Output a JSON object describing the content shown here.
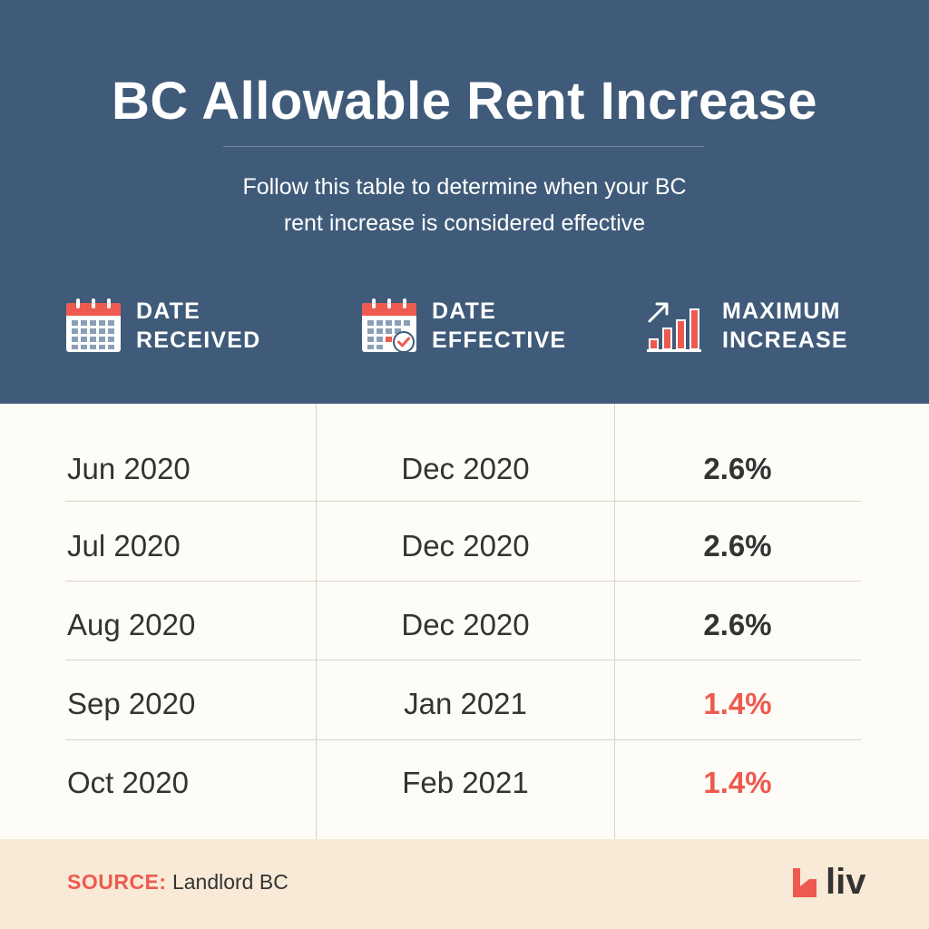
{
  "header": {
    "title": "BC Allowable Rent Increase",
    "subtitle_line1": "Follow this table to determine when your BC",
    "subtitle_line2": "rent increase is considered effective"
  },
  "columns": [
    {
      "line1": "DATE",
      "line2": "RECEIVED",
      "icon": "calendar-icon"
    },
    {
      "line1": "DATE",
      "line2": "EFFECTIVE",
      "icon": "calendar-check-icon"
    },
    {
      "line1": "MAXIMUM",
      "line2": "INCREASE",
      "icon": "bar-chart-up-icon"
    }
  ],
  "rows": [
    {
      "received": "Jun 2020",
      "effective": "Dec 2020",
      "increase": "2.6%"
    },
    {
      "received": "Jul 2020",
      "effective": "Dec 2020",
      "increase": "2.6%"
    },
    {
      "received": "Aug 2020",
      "effective": "Dec 2020",
      "increase": "2.6%"
    },
    {
      "received": "Sep 2020",
      "effective": "Jan 2021",
      "increase": "1.4%"
    },
    {
      "received": "Oct 2020",
      "effective": "Feb 2021",
      "increase": "1.4%"
    }
  ],
  "footer": {
    "source_label": "SOURCE:",
    "source_value": "Landlord BC",
    "logo_text": "liv"
  },
  "colors": {
    "header_bg": "#3f5b79",
    "accent": "#ee5a4f",
    "table_bg": "#fdfcf7",
    "footer_bg": "#f9ead7",
    "text": "#333333"
  }
}
